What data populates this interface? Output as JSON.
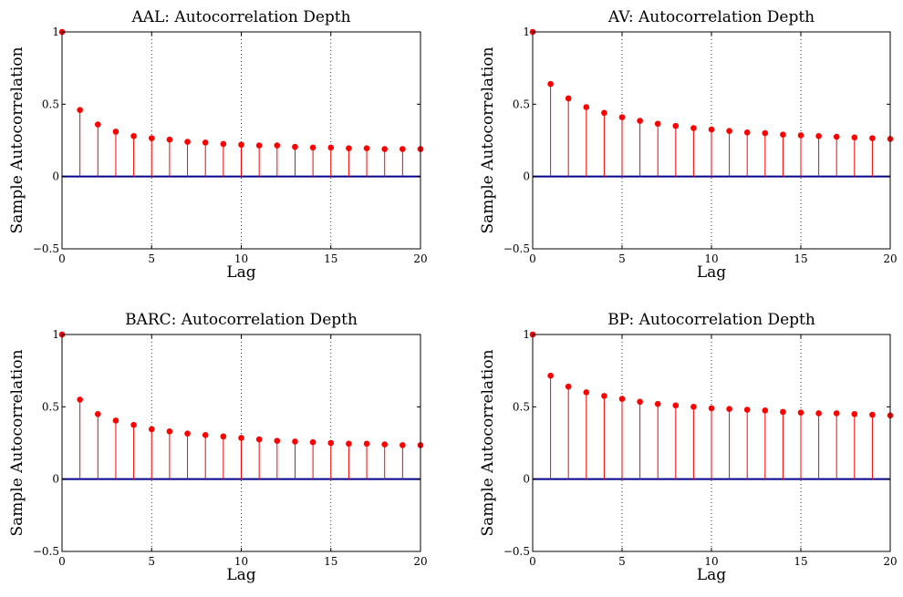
{
  "chart_data": [
    {
      "type": "stem",
      "title": "AAL: Autocorrelation Depth",
      "xlabel": "Lag",
      "ylabel": "Sample Autocorrelation",
      "xlim": [
        0,
        20
      ],
      "ylim": [
        -0.5,
        1
      ],
      "x_ticks": [
        "0",
        "5",
        "10",
        "15",
        "20"
      ],
      "y_ticks": [
        "−0.5",
        "0",
        "0.5",
        "1"
      ],
      "grid": "vertical dotted at x=5,10,15",
      "x": [
        0,
        1,
        2,
        3,
        4,
        5,
        6,
        7,
        8,
        9,
        10,
        11,
        12,
        13,
        14,
        15,
        16,
        17,
        18,
        19,
        20
      ],
      "values": [
        1.0,
        0.46,
        0.36,
        0.31,
        0.28,
        0.265,
        0.255,
        0.24,
        0.235,
        0.225,
        0.22,
        0.215,
        0.215,
        0.205,
        0.2,
        0.2,
        0.195,
        0.195,
        0.19,
        0.19,
        0.19
      ]
    },
    {
      "type": "stem",
      "title": "AV: Autocorrelation Depth",
      "xlabel": "Lag",
      "ylabel": "Sample Autocorrelation",
      "xlim": [
        0,
        20
      ],
      "ylim": [
        -0.5,
        1
      ],
      "x_ticks": [
        "0",
        "5",
        "10",
        "15",
        "20"
      ],
      "y_ticks": [
        "−0.5",
        "0",
        "0.5",
        "1"
      ],
      "grid": "vertical dotted at x=5,10,15",
      "x": [
        0,
        1,
        2,
        3,
        4,
        5,
        6,
        7,
        8,
        9,
        10,
        11,
        12,
        13,
        14,
        15,
        16,
        17,
        18,
        19,
        20
      ],
      "values": [
        1.0,
        0.64,
        0.54,
        0.48,
        0.44,
        0.41,
        0.385,
        0.365,
        0.35,
        0.335,
        0.325,
        0.315,
        0.305,
        0.3,
        0.29,
        0.285,
        0.28,
        0.275,
        0.27,
        0.265,
        0.26
      ]
    },
    {
      "type": "stem",
      "title": "BARC: Autocorrelation Depth",
      "xlabel": "Lag",
      "ylabel": "Sample Autocorrelation",
      "xlim": [
        0,
        20
      ],
      "ylim": [
        -0.5,
        1
      ],
      "x_ticks": [
        "0",
        "5",
        "10",
        "15",
        "20"
      ],
      "y_ticks": [
        "−0.5",
        "0",
        "0.5",
        "1"
      ],
      "grid": "vertical dotted at x=5,10,15",
      "x": [
        0,
        1,
        2,
        3,
        4,
        5,
        6,
        7,
        8,
        9,
        10,
        11,
        12,
        13,
        14,
        15,
        16,
        17,
        18,
        19,
        20
      ],
      "values": [
        1.0,
        0.55,
        0.45,
        0.405,
        0.375,
        0.345,
        0.33,
        0.315,
        0.305,
        0.295,
        0.285,
        0.275,
        0.265,
        0.26,
        0.255,
        0.25,
        0.245,
        0.245,
        0.24,
        0.235,
        0.235
      ]
    },
    {
      "type": "stem",
      "title": "BP: Autocorrelation Depth",
      "xlabel": "Lag",
      "ylabel": "Sample Autocorrelation",
      "xlim": [
        0,
        20
      ],
      "ylim": [
        -0.5,
        1
      ],
      "x_ticks": [
        "0",
        "5",
        "10",
        "15",
        "20"
      ],
      "y_ticks": [
        "−0.5",
        "0",
        "0.5",
        "1"
      ],
      "grid": "vertical dotted at x=5,10,15",
      "x": [
        0,
        1,
        2,
        3,
        4,
        5,
        6,
        7,
        8,
        9,
        10,
        11,
        12,
        13,
        14,
        15,
        16,
        17,
        18,
        19,
        20
      ],
      "values": [
        1.0,
        0.715,
        0.64,
        0.6,
        0.575,
        0.555,
        0.535,
        0.52,
        0.51,
        0.5,
        0.49,
        0.485,
        0.48,
        0.475,
        0.465,
        0.46,
        0.455,
        0.455,
        0.45,
        0.445,
        0.44
      ]
    }
  ],
  "colors": {
    "stem": "#ff0000",
    "marker": "#ff0000",
    "zero_line": "#00008b",
    "grid": "#000000",
    "axes": "#000000"
  }
}
